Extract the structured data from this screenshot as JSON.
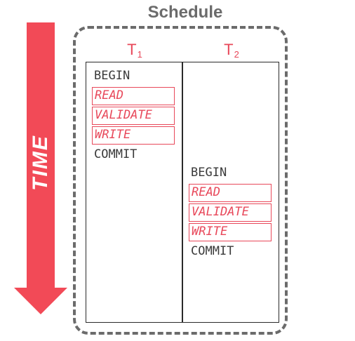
{
  "diagram": {
    "title": "Schedule",
    "time_label": "TIME",
    "accent_color": "#e8485a",
    "arrow_color": "#f24a57",
    "border_color": "#6b6b6b",
    "transactions": [
      {
        "name": "T",
        "subscript": "1",
        "ops": [
          "BEGIN",
          "READ",
          "VALIDATE",
          "WRITE",
          "COMMIT"
        ]
      },
      {
        "name": "T",
        "subscript": "2",
        "ops": [
          "BEGIN",
          "READ",
          "VALIDATE",
          "WRITE",
          "COMMIT"
        ]
      }
    ]
  }
}
